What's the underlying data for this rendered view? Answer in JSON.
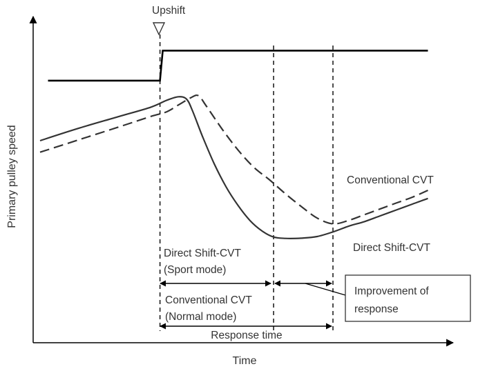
{
  "chart_data": {
    "type": "line",
    "title": "",
    "xlabel": "Time",
    "ylabel": "Primary pulley speed",
    "grid": false,
    "xlim": [
      0,
      100
    ],
    "ylim": [
      0,
      100
    ],
    "event_label": "Upshift",
    "step_signal": {
      "name": "Shift command",
      "points": [
        [
          2,
          86
        ],
        [
          30.3,
          86
        ],
        [
          31,
          99
        ],
        [
          98,
          99
        ]
      ]
    },
    "series": [
      {
        "name": "Direct Shift-CVT",
        "style": "solid",
        "points": [
          [
            0,
            60
          ],
          [
            10,
            65.5
          ],
          [
            20,
            70.5
          ],
          [
            28,
            74.5
          ],
          [
            32,
            77.5
          ],
          [
            35,
            79
          ],
          [
            37,
            78
          ],
          [
            38.5,
            73
          ],
          [
            41,
            62
          ],
          [
            44,
            50
          ],
          [
            47,
            40
          ],
          [
            50,
            32
          ],
          [
            53,
            25.5
          ],
          [
            56,
            21
          ],
          [
            59,
            18.3
          ],
          [
            62,
            17.7
          ],
          [
            66,
            17.8
          ],
          [
            70,
            18.5
          ],
          [
            74,
            20.5
          ],
          [
            78,
            23
          ],
          [
            82,
            25
          ],
          [
            86,
            27.5
          ],
          [
            90,
            30
          ],
          [
            94,
            32.5
          ],
          [
            98,
            35
          ]
        ]
      },
      {
        "name": "Conventional CVT",
        "style": "dashed",
        "points": [
          [
            0,
            55
          ],
          [
            10,
            60.5
          ],
          [
            20,
            66
          ],
          [
            28,
            70.5
          ],
          [
            32,
            72.5
          ],
          [
            35,
            75.5
          ],
          [
            38,
            78.5
          ],
          [
            40,
            79.5
          ],
          [
            42,
            75
          ],
          [
            46,
            65
          ],
          [
            50,
            56
          ],
          [
            54,
            48.5
          ],
          [
            58,
            43
          ],
          [
            62,
            37
          ],
          [
            66,
            31.5
          ],
          [
            70,
            26.5
          ],
          [
            74,
            24
          ],
          [
            78,
            25.5
          ],
          [
            82,
            28
          ],
          [
            86,
            30.5
          ],
          [
            90,
            33
          ],
          [
            94,
            35.5
          ],
          [
            98,
            38.5
          ]
        ]
      }
    ],
    "markers": [
      {
        "name": "shift-start",
        "x": 30.3
      },
      {
        "name": "direct-end",
        "x": 59
      },
      {
        "name": "conventional-end",
        "x": 74
      }
    ],
    "annotations": {
      "conventional_series_label": "Conventional CVT",
      "direct_series_label": "Direct Shift-CVT",
      "direct_mode_line1": "Direct Shift-CVT",
      "direct_mode_line2": "(Sport mode)",
      "conventional_mode_line1": "Conventional CVT",
      "conventional_mode_line2": "(Normal mode)",
      "response_time": "Response time",
      "improvement_line1": "Improvement of",
      "improvement_line2": "response"
    }
  }
}
